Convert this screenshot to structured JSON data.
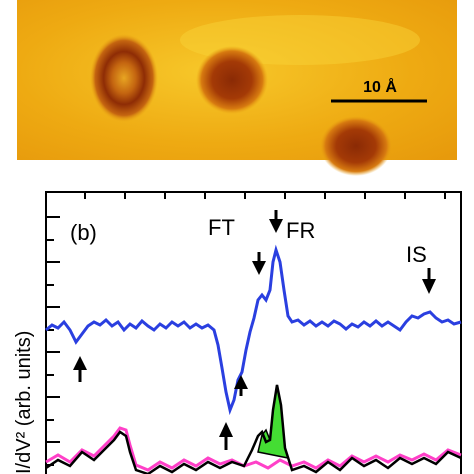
{
  "panel_a": {
    "scale_bar_label": "10 Å"
  },
  "panel_b": {
    "panel_label": "(b)",
    "y_axis_label": "I/dV² (arb. units)",
    "annotations": [
      "FT",
      "FR",
      "IS"
    ],
    "colors": {
      "blue_trace": "#2a3fe0",
      "magenta_trace": "#ff40c8",
      "black_trace": "#000000",
      "green_fill": "#44dd33"
    }
  }
}
